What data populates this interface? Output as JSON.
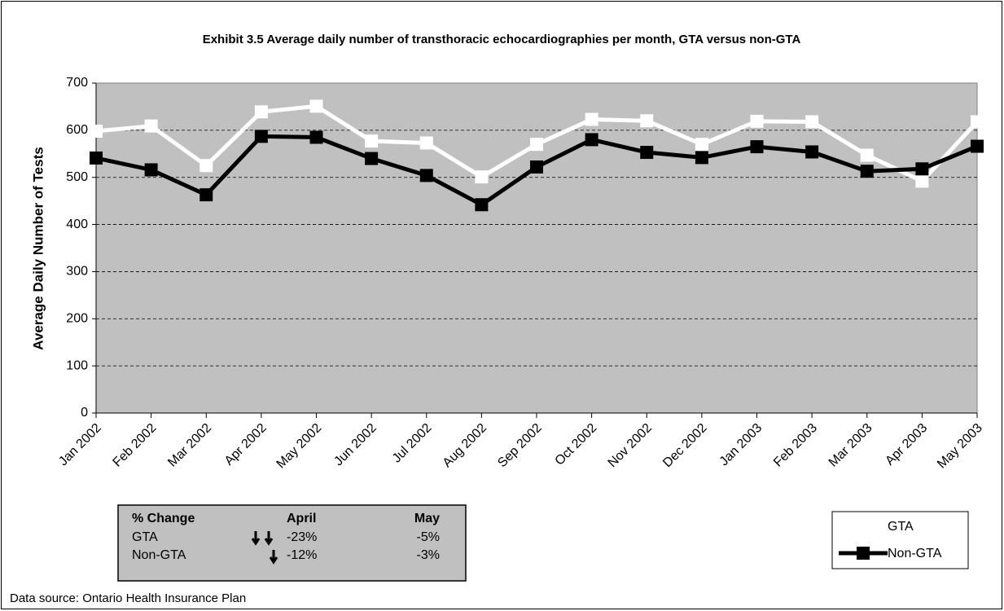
{
  "chart_data": {
    "type": "line",
    "title": "Exhibit 3.5 Average daily number of transthoracic echocardiographies per month, GTA versus non-GTA",
    "ylabel": "Average Daily Number of Tests",
    "categories": [
      "Jan 2002",
      "Feb 2002",
      "Mar 2002",
      "Apr 2002",
      "May 2002",
      "Jun 2002",
      "Jul 2002",
      "Aug 2002",
      "Sep 2002",
      "Oct 2002",
      "Nov 2002",
      "Dec 2002",
      "Jan 2003",
      "Feb 2003",
      "Mar 2003",
      "Apr 2003",
      "May 2003"
    ],
    "series": [
      {
        "name": "GTA",
        "color": "#ffffff",
        "values": [
          598,
          609,
          525,
          639,
          651,
          577,
          573,
          501,
          570,
          623,
          620,
          570,
          619,
          618,
          547,
          492,
          618
        ]
      },
      {
        "name": "Non-GTA",
        "color": "#000000",
        "values": [
          541,
          516,
          463,
          587,
          585,
          540,
          504,
          442,
          522,
          580,
          553,
          542,
          565,
          554,
          513,
          518,
          566
        ]
      }
    ],
    "ylim": [
      0,
      700
    ],
    "yticks": [
      0,
      100,
      200,
      300,
      400,
      500,
      600,
      700
    ],
    "grid": true,
    "legend": "bottom-right",
    "change_table": {
      "header": [
        "% Change",
        "April",
        "May"
      ],
      "rows": [
        [
          "GTA",
          "-23%",
          "-5%"
        ],
        [
          "Non-GTA",
          "-12%",
          "-3%"
        ]
      ]
    },
    "source": "Data source: Ontario Health Insurance Plan"
  }
}
